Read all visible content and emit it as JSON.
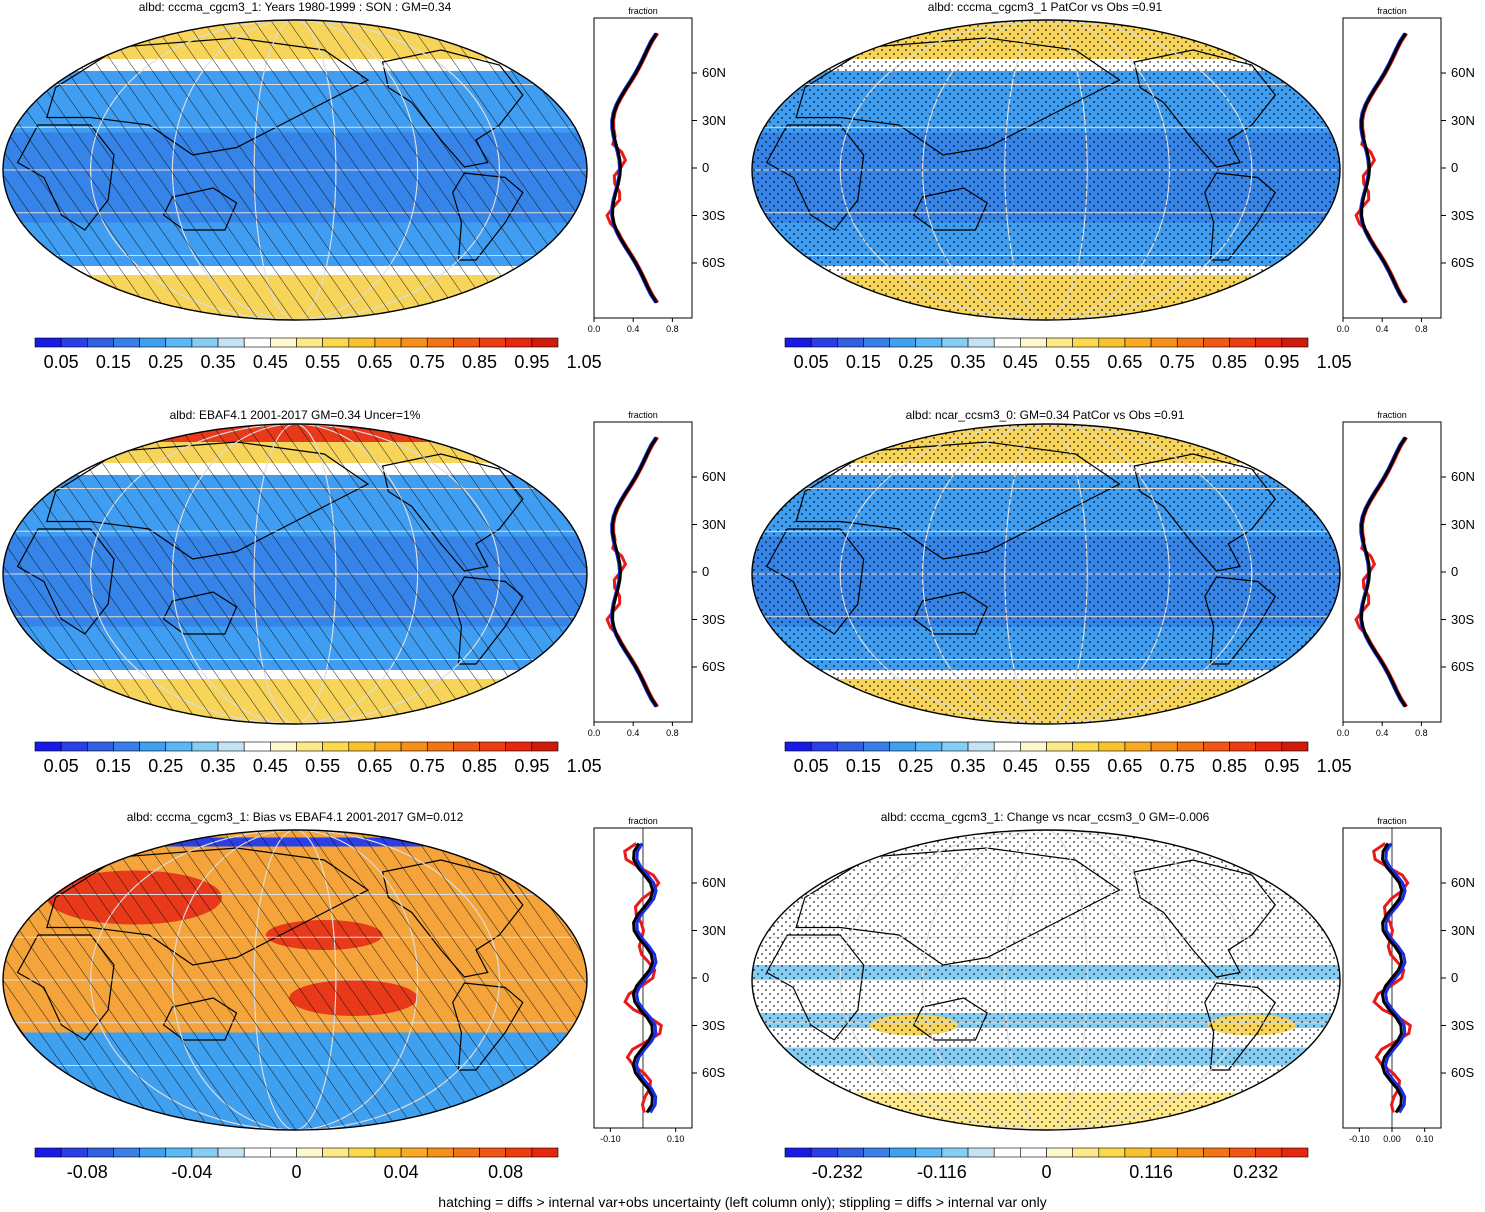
{
  "colors": {
    "ocean_mid": "#3f9ef2",
    "ocean_low": "#2f6fe0",
    "ice": "#f7d45a",
    "land_white": "#ffffff",
    "bias_red": "#e83a1a",
    "bias_orange": "#f4a43a",
    "model_line": "#1a2be6",
    "obs_line": "#e81a1a",
    "ensemble_line": "#000000"
  },
  "panels": [
    {
      "id": "p1",
      "title": "albd: cccma_cgcm3_1: Years 1980-1999 : SON : GM=0.34",
      "pattern": "hatch",
      "kind": "abs"
    },
    {
      "id": "p2",
      "title": "albd: cccma_cgcm3_1 PatCor vs Obs =0.91",
      "pattern": "stipple",
      "kind": "abs"
    },
    {
      "id": "p3",
      "title": "albd: EBAF4.1 2001-2017 GM=0.34 Uncer=1%",
      "pattern": "hatch",
      "kind": "abs"
    },
    {
      "id": "p4",
      "title": "albd: ncar_ccsm3_0: GM=0.34 PatCor vs Obs =0.91",
      "pattern": "stipple",
      "kind": "abs"
    },
    {
      "id": "p5",
      "title": "albd: cccma_cgcm3_1: Bias vs EBAF4.1 2001-2017  GM=0.012",
      "pattern": "hatch",
      "kind": "bias"
    },
    {
      "id": "p6",
      "title": "albd: cccma_cgcm3_1: Change vs ncar_ccsm3_0 GM=-0.006",
      "pattern": "stipple",
      "kind": "change"
    }
  ],
  "colorbars": {
    "abs": {
      "labels": [
        "0.05",
        "0.15",
        "0.25",
        "0.35",
        "0.45",
        "0.55",
        "0.65",
        "0.75",
        "0.85",
        "0.95",
        "1.05"
      ],
      "colors": [
        "#1a1ae6",
        "#2a3fe6",
        "#3160e0",
        "#3a7fe8",
        "#3fa0f0",
        "#5cb8f4",
        "#86cdf4",
        "#c4e4f4",
        "#ffffff",
        "#fff8cf",
        "#fde98a",
        "#fbd84e",
        "#f9c230",
        "#f8aa22",
        "#f6901c",
        "#f27418",
        "#ef5814",
        "#eb3d10",
        "#e6260e",
        "#cf1a0c"
      ]
    },
    "bias": {
      "labels": [
        "-0.08",
        "-0.04",
        "0",
        "0.04",
        "0.08"
      ],
      "colors": [
        "#1a1ae6",
        "#2a3fe6",
        "#3160e0",
        "#3a7fe8",
        "#3fa0f0",
        "#5cb8f4",
        "#86cdf4",
        "#c4e4f4",
        "#ffffff",
        "#ffffff",
        "#fff8cf",
        "#fde98a",
        "#fbd84e",
        "#f9c230",
        "#f8aa22",
        "#f6901c",
        "#f27418",
        "#ef5814",
        "#eb3d10",
        "#e6260e"
      ]
    },
    "change": {
      "labels": [
        "-0.232",
        "-0.116",
        "0",
        "0.116",
        "0.232"
      ],
      "colors": [
        "#1a1ae6",
        "#2a3fe6",
        "#3160e0",
        "#3a7fe8",
        "#3fa0f0",
        "#5cb8f4",
        "#86cdf4",
        "#c4e4f4",
        "#ffffff",
        "#ffffff",
        "#fff8cf",
        "#fde98a",
        "#fbd84e",
        "#f9c230",
        "#f8aa22",
        "#f6901c",
        "#f27418",
        "#ef5814",
        "#eb3d10",
        "#e6260e"
      ]
    }
  },
  "profiles": {
    "title": "fraction",
    "lat_labels": [
      "60N",
      "30N",
      "0",
      "30S",
      "60S"
    ],
    "abs_ticks": [
      "0.0",
      "0.4",
      "0.8"
    ],
    "diff_ticks": [
      "-0.10",
      "0.00",
      "0.10"
    ],
    "bias_ticks": [
      "-0.10",
      "0.10"
    ]
  },
  "footer": "hatching = diffs > internal var+obs uncertainty (left column only); stippling = diffs > internal var only"
}
